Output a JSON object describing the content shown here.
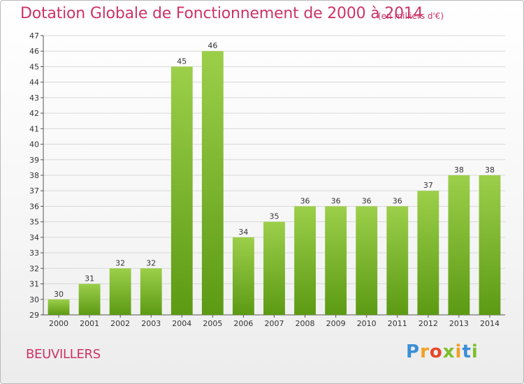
{
  "header": {
    "title": "Dotation Globale de Fonctionnement de 2000 à 2014",
    "subtitle": "(en milliers d'€)"
  },
  "footer": {
    "commune": "BEUVILLERS",
    "logo_letters": [
      "P",
      "r",
      "o",
      "x",
      "i",
      "t",
      "i"
    ],
    "logo_colors": [
      "#3a8fd6",
      "#f2a01e",
      "#e8462a",
      "#7fbf2a",
      "#f2a01e",
      "#3a8fd6",
      "#7fbf2a"
    ]
  },
  "chart_data": {
    "type": "bar",
    "title": "Dotation Globale de Fonctionnement de 2000 à 2014",
    "subtitle": "(en milliers d'€)",
    "xlabel": "",
    "ylabel": "",
    "categories": [
      "2000",
      "2001",
      "2002",
      "2003",
      "2004",
      "2005",
      "2006",
      "2007",
      "2008",
      "2009",
      "2010",
      "2011",
      "2012",
      "2013",
      "2014"
    ],
    "values": [
      30,
      31,
      32,
      32,
      45,
      46,
      34,
      35,
      36,
      36,
      36,
      36,
      37,
      38,
      38
    ],
    "ylim": [
      29,
      47
    ],
    "yticks": [
      29,
      30,
      31,
      32,
      33,
      34,
      35,
      36,
      37,
      38,
      39,
      40,
      41,
      42,
      43,
      44,
      45,
      46,
      47
    ],
    "grid": true,
    "bar_color_top": "#9ccf4a",
    "bar_color_bottom": "#5c9a14",
    "grid_color": "#d8d8d8"
  }
}
